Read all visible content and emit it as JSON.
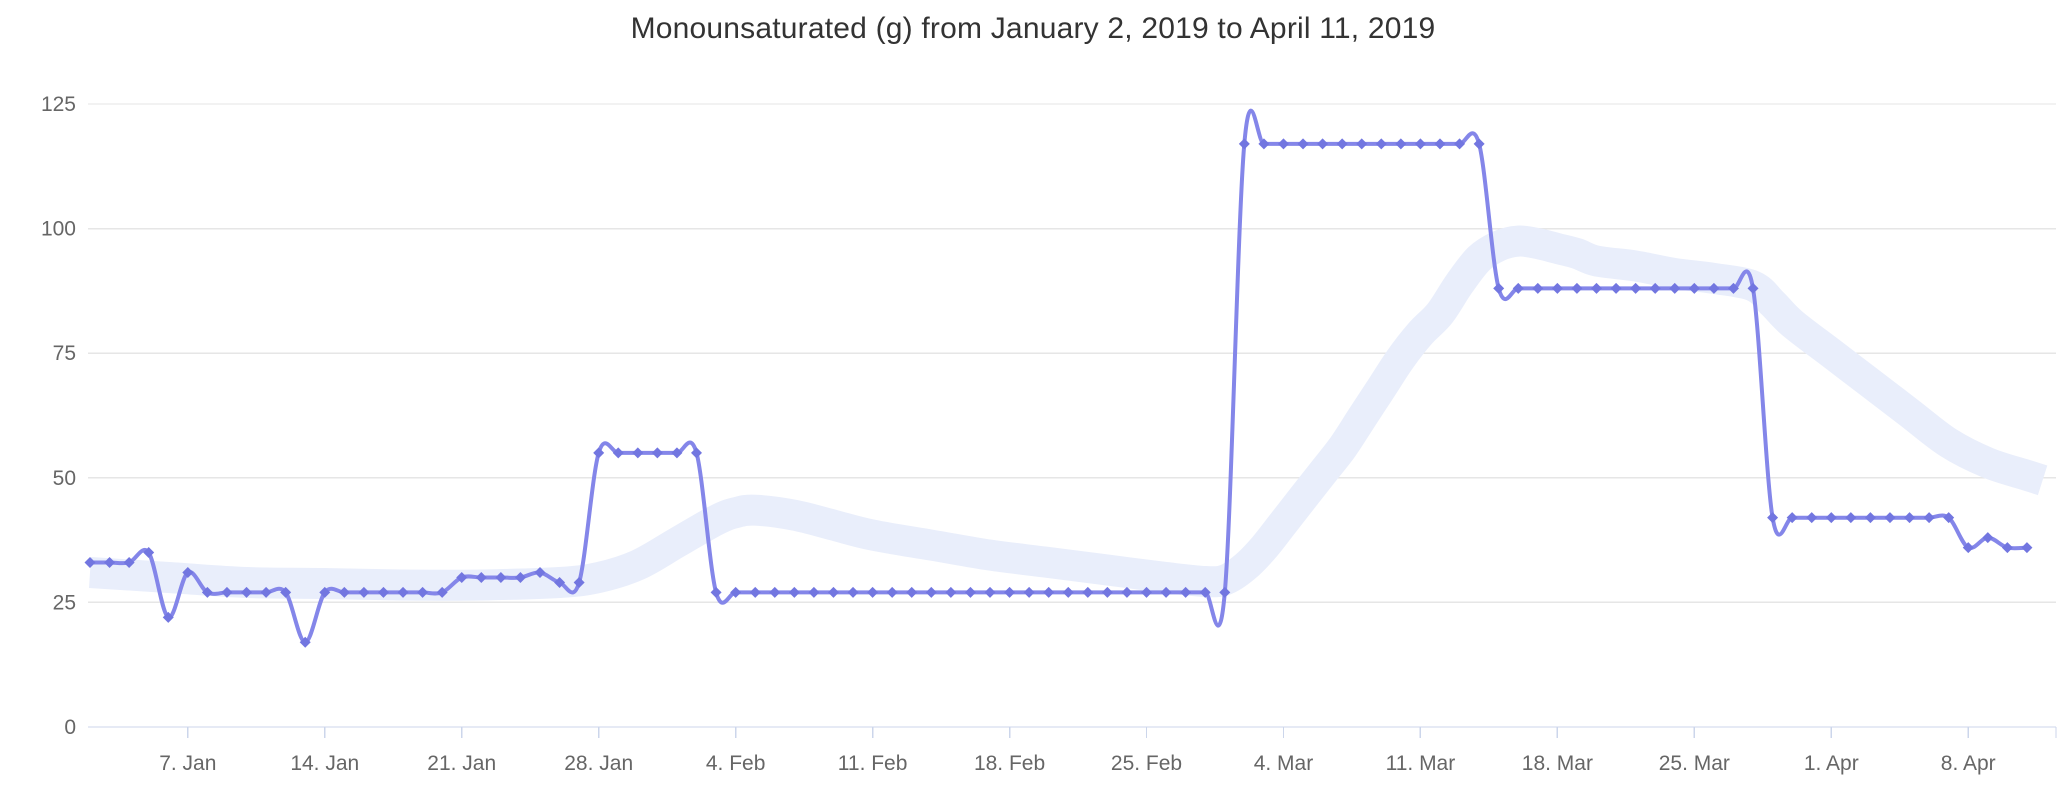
{
  "chart_data": {
    "type": "line",
    "title": "Monounsaturated (g) from January 2, 2019 to April 11, 2019",
    "xlabel": "",
    "ylabel": "",
    "x_start_date": "January 2, 2019",
    "x_end_date": "April 11, 2019",
    "x_unit": "day",
    "num_points": 100,
    "ylim": [
      0,
      129
    ],
    "grid": true,
    "legend": false,
    "y_ticks": [
      0,
      25,
      50,
      75,
      100,
      125
    ],
    "x_ticks": [
      {
        "day": 5,
        "label": "7. Jan"
      },
      {
        "day": 12,
        "label": "14. Jan"
      },
      {
        "day": 19,
        "label": "21. Jan"
      },
      {
        "day": 26,
        "label": "28. Jan"
      },
      {
        "day": 33,
        "label": "4. Feb"
      },
      {
        "day": 40,
        "label": "11. Feb"
      },
      {
        "day": 47,
        "label": "18. Feb"
      },
      {
        "day": 54,
        "label": "25. Feb"
      },
      {
        "day": 61,
        "label": "4. Mar"
      },
      {
        "day": 68,
        "label": "11. Mar"
      },
      {
        "day": 75,
        "label": "18. Mar"
      },
      {
        "day": 82,
        "label": "25. Mar"
      },
      {
        "day": 89,
        "label": "1. Apr"
      },
      {
        "day": 96,
        "label": "8. Apr"
      }
    ],
    "series": [
      {
        "name": "Monounsaturated (g)",
        "style": "spline-with-diamond-markers",
        "values": [
          33,
          33,
          33,
          35,
          22,
          31,
          27,
          27,
          27,
          27,
          27,
          17,
          27,
          27,
          27,
          27,
          27,
          27,
          27,
          30,
          30,
          30,
          30,
          31,
          29,
          29,
          55,
          55,
          55,
          55,
          55,
          55,
          27,
          27,
          27,
          27,
          27,
          27,
          27,
          27,
          27,
          27,
          27,
          27,
          27,
          27,
          27,
          27,
          27,
          27,
          27,
          27,
          27,
          27,
          27,
          27,
          27,
          27,
          27,
          117,
          117,
          117,
          117,
          117,
          117,
          117,
          117,
          117,
          117,
          117,
          117,
          117,
          88,
          88,
          88,
          88,
          88,
          88,
          88,
          88,
          88,
          88,
          88,
          88,
          88,
          88,
          42,
          42,
          42,
          42,
          42,
          42,
          42,
          42,
          42,
          42,
          36,
          38,
          36,
          36
        ]
      },
      {
        "name": "trend-band",
        "style": "thick-light-band",
        "points": [
          [
            0,
            31
          ],
          [
            4,
            30
          ],
          [
            8,
            29
          ],
          [
            12,
            28.8
          ],
          [
            16,
            28.5
          ],
          [
            20,
            28.5
          ],
          [
            24,
            29
          ],
          [
            26,
            30
          ],
          [
            28,
            32.5
          ],
          [
            30,
            37
          ],
          [
            32,
            41.5
          ],
          [
            33,
            43
          ],
          [
            34,
            43.5
          ],
          [
            36,
            42.5
          ],
          [
            38,
            40.5
          ],
          [
            40,
            38.5
          ],
          [
            43,
            36.5
          ],
          [
            46,
            34.5
          ],
          [
            49,
            33
          ],
          [
            52,
            31.5
          ],
          [
            55,
            30
          ],
          [
            57,
            29.2
          ],
          [
            58,
            29.5
          ],
          [
            59,
            32
          ],
          [
            60,
            36
          ],
          [
            61,
            41
          ],
          [
            62,
            46
          ],
          [
            63,
            51
          ],
          [
            64,
            56
          ],
          [
            65,
            62
          ],
          [
            66,
            68
          ],
          [
            67,
            74
          ],
          [
            68,
            79
          ],
          [
            69,
            83
          ],
          [
            70,
            89
          ],
          [
            71,
            94
          ],
          [
            72,
            96.5
          ],
          [
            73,
            97.5
          ],
          [
            74,
            97
          ],
          [
            75,
            96
          ],
          [
            76,
            95
          ],
          [
            77,
            93.5
          ],
          [
            79,
            92.5
          ],
          [
            81,
            91
          ],
          [
            83,
            90
          ],
          [
            85,
            88.5
          ],
          [
            86,
            85
          ],
          [
            87,
            81
          ],
          [
            89,
            75
          ],
          [
            91,
            69
          ],
          [
            93,
            63
          ],
          [
            95,
            57
          ],
          [
            97,
            53
          ],
          [
            99,
            50.5
          ],
          [
            99.8,
            49.5
          ]
        ]
      }
    ]
  },
  "colors": {
    "background": "#ffffff",
    "line": "#8486e9",
    "marker": "#7276e0",
    "band": "#e9eefb",
    "grid": "#e6e6e6",
    "axis": "#ccd6eb",
    "title_text": "#333333",
    "label_text": "#666666"
  }
}
